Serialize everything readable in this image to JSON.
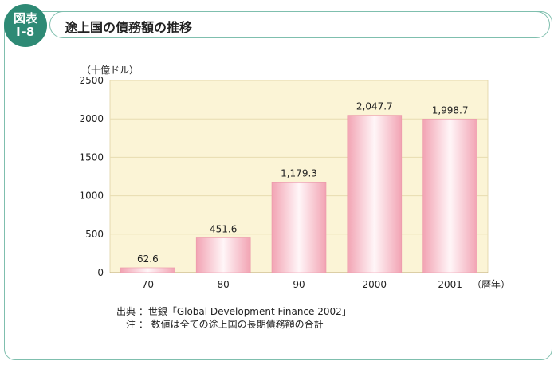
{
  "badge": {
    "line1": "図表",
    "line2": "Ⅰ-8"
  },
  "title": "途上国の債務額の推移",
  "chart_data": {
    "type": "bar",
    "ylabel": "（十億ドル）",
    "xlabel": "（暦年）",
    "categories": [
      "70",
      "80",
      "90",
      "2000",
      "2001"
    ],
    "values": [
      62.6,
      451.6,
      1179.3,
      2047.7,
      1998.7
    ],
    "value_labels": [
      "62.6",
      "451.6",
      "1,179.3",
      "2,047.7",
      "1,998.7"
    ],
    "ylim": [
      0,
      2500
    ],
    "yticks": [
      0,
      500,
      1000,
      1500,
      2000,
      2500
    ],
    "grid": true,
    "colors": {
      "plot_bg": "#fbf4d6",
      "bar_edge": "#f2a3b3",
      "bar_center": "#fff6f8",
      "grid": "#e8dcb0"
    }
  },
  "notes": {
    "source": "出典 ：世銀「Global Development Finance 2002」",
    "note": "　注 ： 数値は全ての途上国の長期債務額の合計"
  }
}
